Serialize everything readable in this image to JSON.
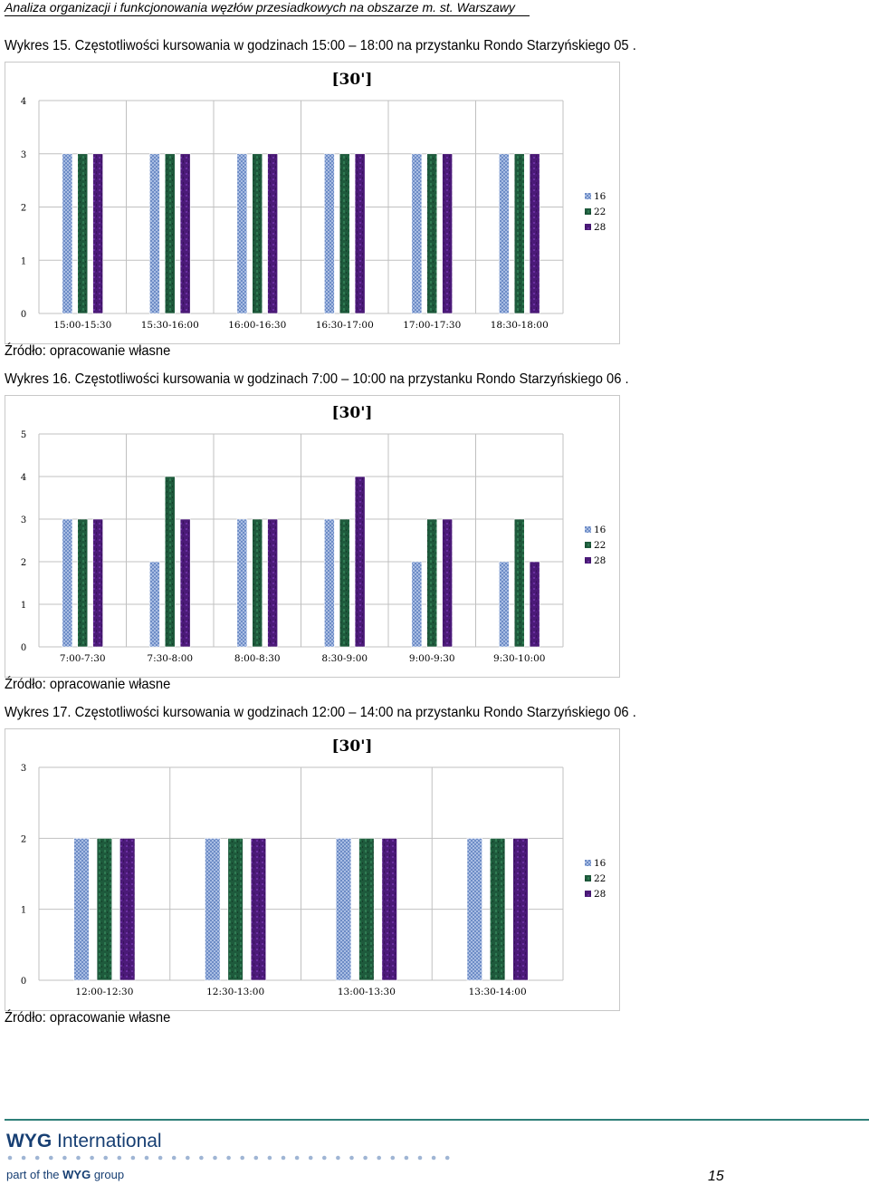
{
  "header": "Analiza organizacji i funkcjonowania węzłów przesiadkowych na obszarze m. st. Warszawy",
  "footer": {
    "brand_bold": "WYG",
    "brand_rest": " International",
    "tag_prefix": "part of the ",
    "tag_bold": "WYG",
    "tag_suffix": " group",
    "page": "15"
  },
  "colors": {
    "series16": "#8aa3d4",
    "series22": "#1e5a3c",
    "series28": "#4b1a78",
    "grid": "#c0c0c0"
  },
  "charts": [
    {
      "title": "Wykres 15. Częstotliwości kursowania  w godzinach 15:00 – 18:00 na przystanku Rondo Starzyńskiego 05 .",
      "source": "Źródło: opracowanie własne",
      "chart_data": {
        "type": "bar",
        "title": "[30']",
        "categories": [
          "15:00-15:30",
          "15:30-16:00",
          "16:00-16:30",
          "16:30-17:00",
          "17:00-17:30",
          "18:30-18:00"
        ],
        "series": [
          {
            "name": "16",
            "values": [
              3,
              3,
              3,
              3,
              3,
              3
            ]
          },
          {
            "name": "22",
            "values": [
              3,
              3,
              3,
              3,
              3,
              3
            ]
          },
          {
            "name": "28",
            "values": [
              3,
              3,
              3,
              3,
              3,
              3
            ]
          }
        ],
        "ylim": [
          0,
          4
        ],
        "yticks": [
          0,
          1,
          2,
          3,
          4
        ],
        "grid": true,
        "legend": "right"
      }
    },
    {
      "title": "Wykres 16. Częstotliwości kursowania  w godzinach 7:00 – 10:00 na przystanku Rondo Starzyńskiego 06 .",
      "source": "Źródło: opracowanie własne",
      "chart_data": {
        "type": "bar",
        "title": "[30']",
        "categories": [
          "7:00-7:30",
          "7:30-8:00",
          "8:00-8:30",
          "8:30-9:00",
          "9:00-9:30",
          "9:30-10:00"
        ],
        "series": [
          {
            "name": "16",
            "values": [
              3,
              2,
              3,
              3,
              2,
              2
            ]
          },
          {
            "name": "22",
            "values": [
              3,
              4,
              3,
              3,
              3,
              3
            ]
          },
          {
            "name": "28",
            "values": [
              3,
              3,
              3,
              4,
              3,
              2
            ]
          }
        ],
        "ylim": [
          0,
          5
        ],
        "yticks": [
          0,
          1,
          2,
          3,
          4,
          5
        ],
        "grid": true,
        "legend": "right"
      }
    },
    {
      "title": "Wykres 17. Częstotliwości kursowania  w godzinach 12:00 – 14:00 na przystanku Rondo Starzyńskiego 06 .",
      "source": "Źródło: opracowanie własne",
      "chart_data": {
        "type": "bar",
        "title": "[30']",
        "categories": [
          "12:00-12:30",
          "12:30-13:00",
          "13:00-13:30",
          "13:30-14:00"
        ],
        "series": [
          {
            "name": "16",
            "values": [
              2,
              2,
              2,
              2
            ]
          },
          {
            "name": "22",
            "values": [
              2,
              2,
              2,
              2
            ]
          },
          {
            "name": "28",
            "values": [
              2,
              2,
              2,
              2
            ]
          }
        ],
        "ylim": [
          0,
          3
        ],
        "yticks": [
          0,
          1,
          2,
          3
        ],
        "grid": true,
        "legend": "right"
      }
    }
  ]
}
